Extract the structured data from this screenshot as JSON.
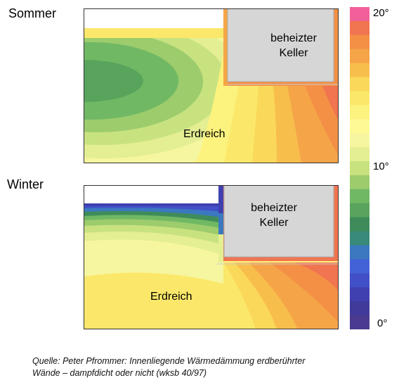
{
  "sommer": {
    "title": "Sommer",
    "basement_label_line1": "beheizter",
    "basement_label_line2": "Keller",
    "soil_label": "Erdreich"
  },
  "winter": {
    "title": "Winter",
    "basement_label_line1": "beheizter",
    "basement_label_line2": "Keller",
    "soil_label": "Erdreich"
  },
  "legend": {
    "label_top": "20°",
    "label_mid": "10°",
    "label_bottom": "0°",
    "colors": [
      "#f2609a",
      "#f07550",
      "#f49045",
      "#f5a548",
      "#f8be4c",
      "#fad85a",
      "#fbe86a",
      "#fcf27e",
      "#fef995",
      "#f6f6a0",
      "#e4ee92",
      "#c8e280",
      "#9ccc6c",
      "#70b864",
      "#58a45c",
      "#3f8c5a",
      "#3a8a7a",
      "#3c78c0",
      "#4462d8",
      "#4250c8",
      "#4040b0",
      "#403a9a",
      "#4a3a90"
    ]
  },
  "caption": {
    "line1": "Quelle: Peter Pfrommer: Innenliegende Wärmedämmung erdberührter",
    "line2": "Wände – dampfdicht oder nicht (wksb 40/97)"
  }
}
